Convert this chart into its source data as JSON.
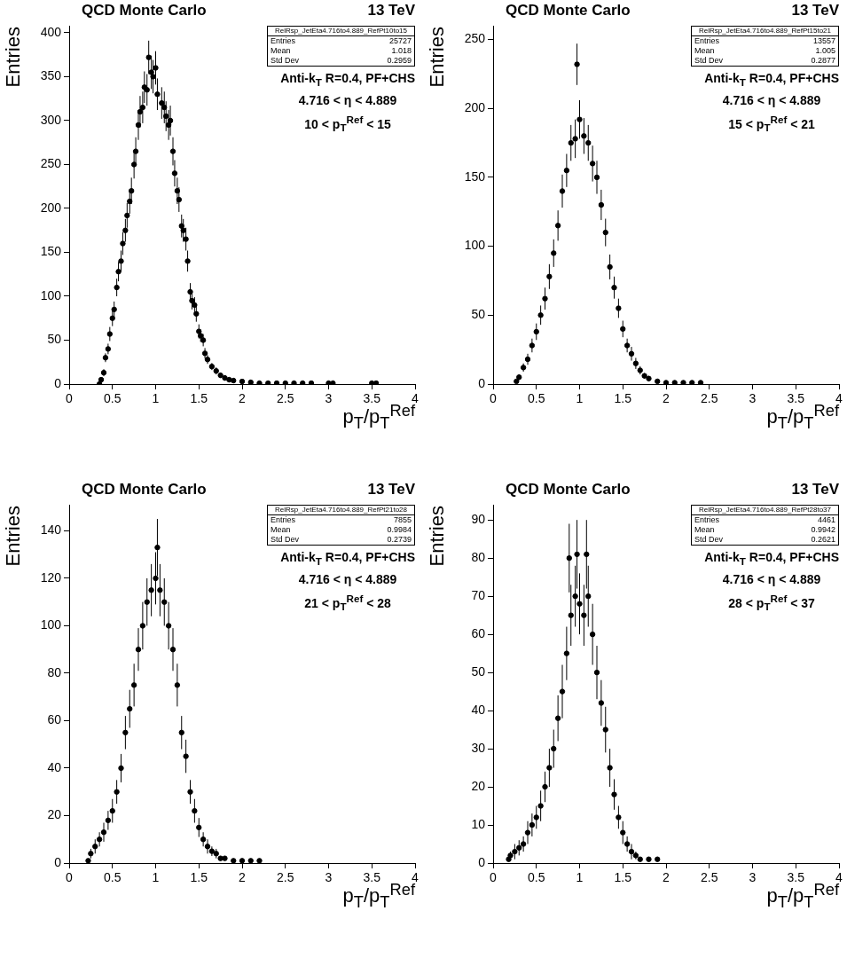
{
  "chart_data": [
    {
      "type": "scatter",
      "title": "QCD Monte Carlo",
      "subtitle": "13 TeV",
      "xlabel": "p$_{T}$/p$_{T}$$^{Ref}$",
      "ylabel": "Entries",
      "annotations": [
        "RelRsp_JetEta4.716to4.889_RefPt10to15",
        "Entries",
        "25727",
        "Mean",
        "1.018",
        "Std Dev",
        "0.2959",
        "Anti-k$_{T}$ R=0.4, PF+CHS",
        "4.716 <  η < 4.889",
        "10 <  p$_{T}$$^{Ref}$ < 15"
      ],
      "marker": "circle",
      "grid": false,
      "legend": false,
      "color": "#000000",
      "xlim": [
        0,
        4
      ],
      "ylim": [
        0,
        408
      ],
      "xticks": [
        0,
        0.5,
        1,
        1.5,
        2,
        2.5,
        3,
        3.5,
        4
      ],
      "yticks": [
        0,
        50,
        100,
        150,
        200,
        250,
        300,
        350,
        400
      ],
      "x": [
        0.35,
        0.37,
        0.4,
        0.42,
        0.45,
        0.47,
        0.5,
        0.52,
        0.55,
        0.57,
        0.6,
        0.62,
        0.65,
        0.67,
        0.7,
        0.72,
        0.75,
        0.77,
        0.8,
        0.82,
        0.85,
        0.87,
        0.9,
        0.92,
        0.95,
        0.97,
        1.0,
        1.02,
        1.07,
        1.1,
        1.12,
        1.15,
        1.17,
        1.2,
        1.22,
        1.25,
        1.27,
        1.3,
        1.32,
        1.35,
        1.37,
        1.4,
        1.42,
        1.45,
        1.47,
        1.5,
        1.52,
        1.55,
        1.57,
        1.6,
        1.65,
        1.7,
        1.75,
        1.8,
        1.85,
        1.9,
        2.0,
        2.1,
        2.2,
        2.3,
        2.4,
        2.5,
        2.6,
        2.7,
        2.8,
        3.0,
        3.05,
        3.5,
        3.55
      ],
      "values": [
        0,
        5,
        13,
        30,
        40,
        57,
        75,
        85,
        110,
        128,
        140,
        160,
        175,
        192,
        208,
        220,
        250,
        265,
        295,
        310,
        315,
        338,
        335,
        372,
        355,
        350,
        360,
        330,
        320,
        315,
        305,
        295,
        300,
        265,
        240,
        220,
        210,
        180,
        175,
        165,
        140,
        105,
        95,
        90,
        80,
        60,
        55,
        50,
        35,
        28,
        20,
        15,
        10,
        7,
        5,
        4,
        3,
        2,
        1,
        1,
        1,
        1,
        1,
        1,
        1,
        1,
        1,
        1,
        1
      ],
      "errors": [
        0,
        2,
        4,
        5,
        6,
        8,
        9,
        9,
        10,
        11,
        12,
        13,
        13,
        14,
        14,
        15,
        16,
        16,
        17,
        18,
        18,
        18,
        18,
        19,
        19,
        19,
        19,
        18,
        18,
        18,
        17,
        17,
        17,
        16,
        15,
        15,
        14,
        13,
        13,
        13,
        12,
        10,
        10,
        9,
        9,
        8,
        7,
        7,
        6,
        5,
        4,
        4,
        3,
        3,
        2,
        2,
        2,
        1,
        1,
        1,
        1,
        1,
        1,
        1,
        1,
        1,
        1,
        1,
        1
      ]
    },
    {
      "type": "scatter",
      "title": "QCD Monte Carlo",
      "subtitle": "13 TeV",
      "xlabel": "p$_{T}$/p$_{T}$$^{Ref}$",
      "ylabel": "Entries",
      "annotations": [
        "RelRsp_JetEta4.716to4.889_RefPt15to21",
        "Entries",
        "13557",
        "Mean",
        "1.005",
        "Std Dev",
        "0.2877",
        "Anti-k$_{T}$ R=0.4, PF+CHS",
        "4.716 <  η < 4.889",
        "15 <  p$_{T}$$^{Ref}$ < 21"
      ],
      "marker": "circle",
      "grid": false,
      "legend": false,
      "color": "#000000",
      "xlim": [
        0,
        4
      ],
      "ylim": [
        0,
        260
      ],
      "xticks": [
        0,
        0.5,
        1,
        1.5,
        2,
        2.5,
        3,
        3.5,
        4
      ],
      "yticks": [
        0,
        50,
        100,
        150,
        200,
        250
      ],
      "x": [
        0.27,
        0.3,
        0.35,
        0.4,
        0.45,
        0.5,
        0.55,
        0.6,
        0.65,
        0.7,
        0.75,
        0.8,
        0.85,
        0.9,
        0.95,
        0.97,
        1.0,
        1.05,
        1.1,
        1.15,
        1.2,
        1.25,
        1.3,
        1.35,
        1.4,
        1.45,
        1.5,
        1.55,
        1.6,
        1.65,
        1.7,
        1.75,
        1.8,
        1.9,
        2.0,
        2.1,
        2.2,
        2.3,
        2.4
      ],
      "values": [
        2,
        5,
        12,
        18,
        28,
        38,
        50,
        62,
        78,
        95,
        115,
        140,
        155,
        175,
        178,
        232,
        192,
        180,
        175,
        160,
        150,
        130,
        110,
        85,
        70,
        55,
        40,
        28,
        22,
        15,
        10,
        6,
        4,
        2,
        1,
        1,
        1,
        1,
        1
      ],
      "errors": [
        1,
        2,
        3,
        4,
        5,
        6,
        7,
        8,
        9,
        10,
        11,
        12,
        12,
        13,
        14,
        15,
        14,
        13,
        13,
        13,
        12,
        11,
        10,
        9,
        8,
        7,
        6,
        5,
        5,
        4,
        3,
        2,
        2,
        1,
        1,
        1,
        1,
        1,
        1
      ]
    },
    {
      "type": "scatter",
      "title": "QCD Monte Carlo",
      "subtitle": "13 TeV",
      "xlabel": "p$_{T}$/p$_{T}$$^{Ref}$",
      "ylabel": "Entries",
      "annotations": [
        "RelRsp_JetEta4.716to4.889_RefPt21to28",
        "Entries",
        "7855",
        "Mean",
        "0.9984",
        "Std Dev",
        "0.2739",
        "Anti-k$_{T}$ R=0.4, PF+CHS",
        "4.716 <  η < 4.889",
        "21 <  p$_{T}$$^{Ref}$ < 28"
      ],
      "marker": "circle",
      "grid": false,
      "legend": false,
      "color": "#000000",
      "xlim": [
        0,
        4
      ],
      "ylim": [
        0,
        151
      ],
      "xticks": [
        0,
        0.5,
        1,
        1.5,
        2,
        2.5,
        3,
        3.5,
        4
      ],
      "yticks": [
        0,
        20,
        40,
        60,
        80,
        100,
        120,
        140
      ],
      "x": [
        0.22,
        0.25,
        0.3,
        0.35,
        0.4,
        0.45,
        0.5,
        0.55,
        0.6,
        0.65,
        0.7,
        0.75,
        0.8,
        0.85,
        0.9,
        0.95,
        1.0,
        1.02,
        1.05,
        1.1,
        1.15,
        1.2,
        1.25,
        1.3,
        1.35,
        1.4,
        1.45,
        1.5,
        1.55,
        1.6,
        1.65,
        1.7,
        1.75,
        1.8,
        1.9,
        2.0,
        2.1,
        2.2
      ],
      "values": [
        1,
        4,
        7,
        10,
        13,
        18,
        22,
        30,
        40,
        55,
        65,
        75,
        90,
        100,
        110,
        115,
        120,
        133,
        115,
        110,
        100,
        90,
        75,
        55,
        45,
        30,
        22,
        15,
        10,
        7,
        5,
        4,
        2,
        2,
        1,
        1,
        1,
        1
      ],
      "errors": [
        null,
        2,
        3,
        3,
        4,
        4,
        5,
        5,
        6,
        7,
        8,
        9,
        9,
        10,
        10,
        11,
        11,
        12,
        11,
        10,
        10,
        9,
        9,
        7,
        7,
        5,
        5,
        4,
        3,
        3,
        2,
        2,
        1,
        null,
        null,
        null,
        null,
        null
      ]
    },
    {
      "type": "scatter",
      "title": "QCD Monte Carlo",
      "subtitle": "13 TeV",
      "xlabel": "p$_{T}$/p$_{T}$$^{Ref}$",
      "ylabel": "Entries",
      "annotations": [
        "RelRsp_JetEta4.716to4.889_RefPt28to37",
        "Entries",
        "4461",
        "Mean",
        "0.9942",
        "Std Dev",
        "0.2621",
        "Anti-k$_{T}$ R=0.4, PF+CHS",
        "4.716 <  η < 4.889",
        "28 <  p$_{T}$$^{Ref}$ < 37"
      ],
      "marker": "circle",
      "grid": false,
      "legend": false,
      "color": "#000000",
      "xlim": [
        0,
        4
      ],
      "ylim": [
        0,
        94
      ],
      "xticks": [
        0,
        0.5,
        1,
        1.5,
        2,
        2.5,
        3,
        3.5,
        4
      ],
      "yticks": [
        0,
        10,
        20,
        30,
        40,
        50,
        60,
        70,
        80,
        90
      ],
      "x": [
        0.18,
        0.2,
        0.25,
        0.3,
        0.35,
        0.4,
        0.45,
        0.5,
        0.55,
        0.6,
        0.65,
        0.7,
        0.75,
        0.8,
        0.85,
        0.88,
        0.9,
        0.95,
        0.97,
        1.0,
        1.05,
        1.08,
        1.1,
        1.15,
        1.2,
        1.25,
        1.3,
        1.35,
        1.4,
        1.45,
        1.5,
        1.55,
        1.6,
        1.65,
        1.7,
        1.8,
        1.9
      ],
      "values": [
        1,
        2,
        3,
        4,
        5,
        8,
        10,
        12,
        15,
        20,
        25,
        30,
        38,
        45,
        55,
        80,
        65,
        70,
        81,
        68,
        65,
        81,
        70,
        60,
        50,
        42,
        35,
        25,
        18,
        12,
        8,
        5,
        3,
        2,
        1,
        1,
        1
      ],
      "errors": [
        null,
        1,
        2,
        2,
        2,
        3,
        3,
        3,
        4,
        4,
        5,
        5,
        6,
        7,
        7,
        9,
        8,
        8,
        9,
        8,
        8,
        9,
        8,
        8,
        7,
        6,
        6,
        5,
        4,
        3,
        3,
        2,
        2,
        1,
        null,
        null,
        null
      ]
    }
  ]
}
